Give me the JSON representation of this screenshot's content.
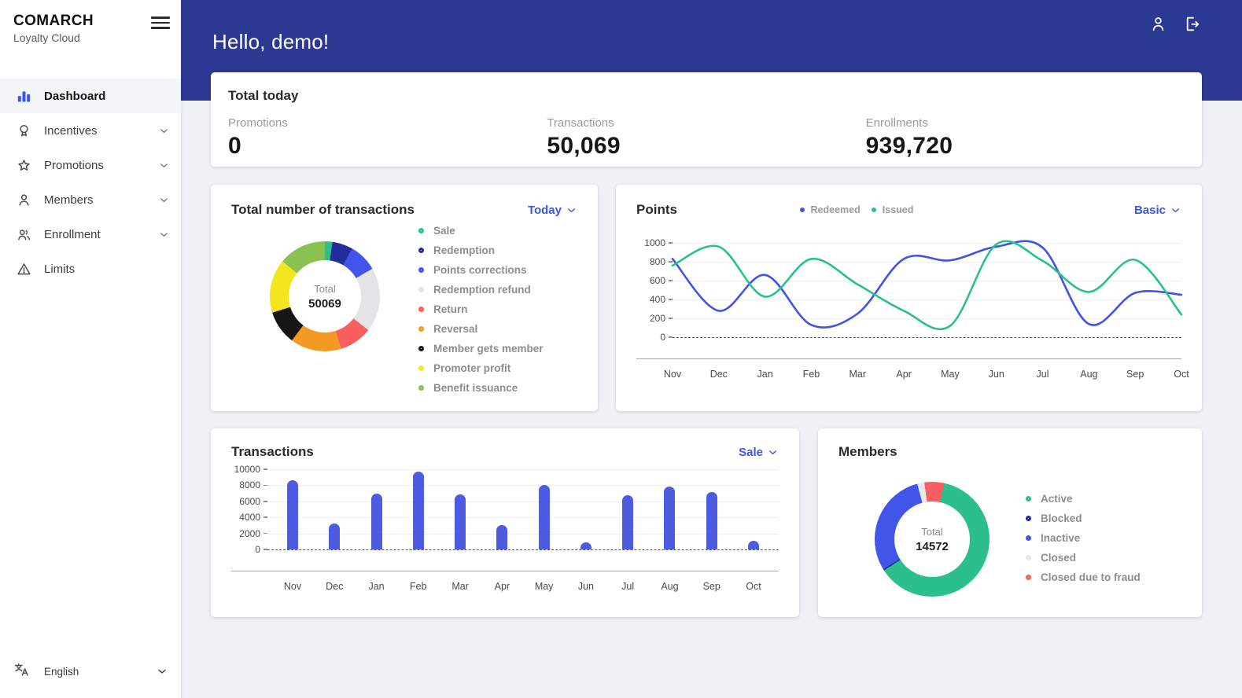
{
  "colors": {
    "header_blue": "#2c3992",
    "accent_blue": "#3b55e6",
    "bar_blue": "#4c5be0"
  },
  "icons": {
    "sidebar": [
      "dashboard-icon",
      "incentives-icon",
      "promotions-icon",
      "members-icon",
      "enrollment-icon",
      "limits-icon",
      "translate-icon",
      "hamburger-icon"
    ],
    "header": [
      "account-icon",
      "logout-icon"
    ]
  },
  "sidebar": {
    "logo": {
      "title": "COMARCH",
      "subtitle": "Loyalty Cloud"
    },
    "items": [
      {
        "label": "Dashboard"
      },
      {
        "label": "Incentives"
      },
      {
        "label": "Promotions"
      },
      {
        "label": "Members"
      },
      {
        "label": "Enrollment"
      },
      {
        "label": "Limits"
      }
    ],
    "language": {
      "label": "English"
    }
  },
  "header": {
    "greeting": "Hello, demo!"
  },
  "total_today": {
    "title": "Total today",
    "stats": [
      {
        "label": "Promotions",
        "value": "0"
      },
      {
        "label": "Transactions",
        "value": "50,069"
      },
      {
        "label": "Enrollments",
        "value": "939,720"
      }
    ]
  },
  "chart_data": [
    {
      "type": "pie",
      "title": "Total number of transactions",
      "filter": "Today",
      "center_label": "Total",
      "center_value": "50069",
      "rotation_deg": 0,
      "segments": [
        {
          "label": "Sale",
          "color": "#2abf8b",
          "pct": 2.2
        },
        {
          "label": "Redemption",
          "color": "#232d9b",
          "pct": 6.1
        },
        {
          "label": "Points corrections",
          "color": "#4155e8",
          "pct": 8.3
        },
        {
          "label": "Redemption refund",
          "color": "#e4e4e7",
          "pct": 18.9
        },
        {
          "label": "Return",
          "color": "#f7605e",
          "pct": 9.7
        },
        {
          "label": "Reversal",
          "color": "#f29a24",
          "pct": 15.0
        },
        {
          "label": "Member gets member",
          "color": "#161616",
          "pct": 10.0
        },
        {
          "label": "Promoter profit",
          "color": "#f4e51c",
          "pct": 15.8
        },
        {
          "label": "Benefit issuance",
          "color": "#8ac152",
          "pct": 14.0
        }
      ]
    },
    {
      "type": "line",
      "title": "Points",
      "filter": "Basic",
      "categories": [
        "Nov",
        "Dec",
        "Jan",
        "Feb",
        "Mar",
        "Apr",
        "May",
        "Jun",
        "Jul",
        "Aug",
        "Sep",
        "Oct"
      ],
      "ylim": [
        0,
        1000
      ],
      "yticks": [
        1000,
        800,
        600,
        400,
        200,
        0
      ],
      "zero_line_dashed": true,
      "series": [
        {
          "name": "Redeemed",
          "color": "#4153e3",
          "values": [
            830,
            280,
            660,
            130,
            250,
            830,
            815,
            960,
            950,
            140,
            470,
            450
          ]
        },
        {
          "name": "Issued",
          "color": "#2abf8b",
          "values": [
            760,
            960,
            430,
            830,
            560,
            280,
            120,
            985,
            810,
            480,
            820,
            240
          ]
        }
      ]
    },
    {
      "type": "bar",
      "title": "Transactions",
      "filter": "Sale",
      "categories": [
        "Nov",
        "Dec",
        "Jan",
        "Feb",
        "Mar",
        "Apr",
        "May",
        "Jun",
        "Jul",
        "Aug",
        "Sep",
        "Oct"
      ],
      "ylim": [
        0,
        10000
      ],
      "yticks": [
        10000,
        8000,
        6000,
        4000,
        2000,
        0
      ],
      "zero_line_dashed": true,
      "bar_color": "#4c5be0",
      "values": [
        8600,
        3200,
        7000,
        9700,
        6900,
        3000,
        8000,
        900,
        6800,
        7800,
        7200,
        1100
      ]
    },
    {
      "type": "pie",
      "title": "Members",
      "center_label": "Total",
      "center_value": "14572",
      "rotation_deg": 12,
      "segments": [
        {
          "label": "Active",
          "color": "#2abf8b",
          "pct": 62.5
        },
        {
          "label": "Blocked",
          "color": "#232d9b",
          "pct": 0.4
        },
        {
          "label": "Inactive",
          "color": "#4155e8",
          "pct": 29.6
        },
        {
          "label": "Closed",
          "color": "#e8e8ea",
          "pct": 2.0
        },
        {
          "label": "Closed due to fraud",
          "color": "#f7605e",
          "pct": 5.5
        }
      ]
    }
  ]
}
